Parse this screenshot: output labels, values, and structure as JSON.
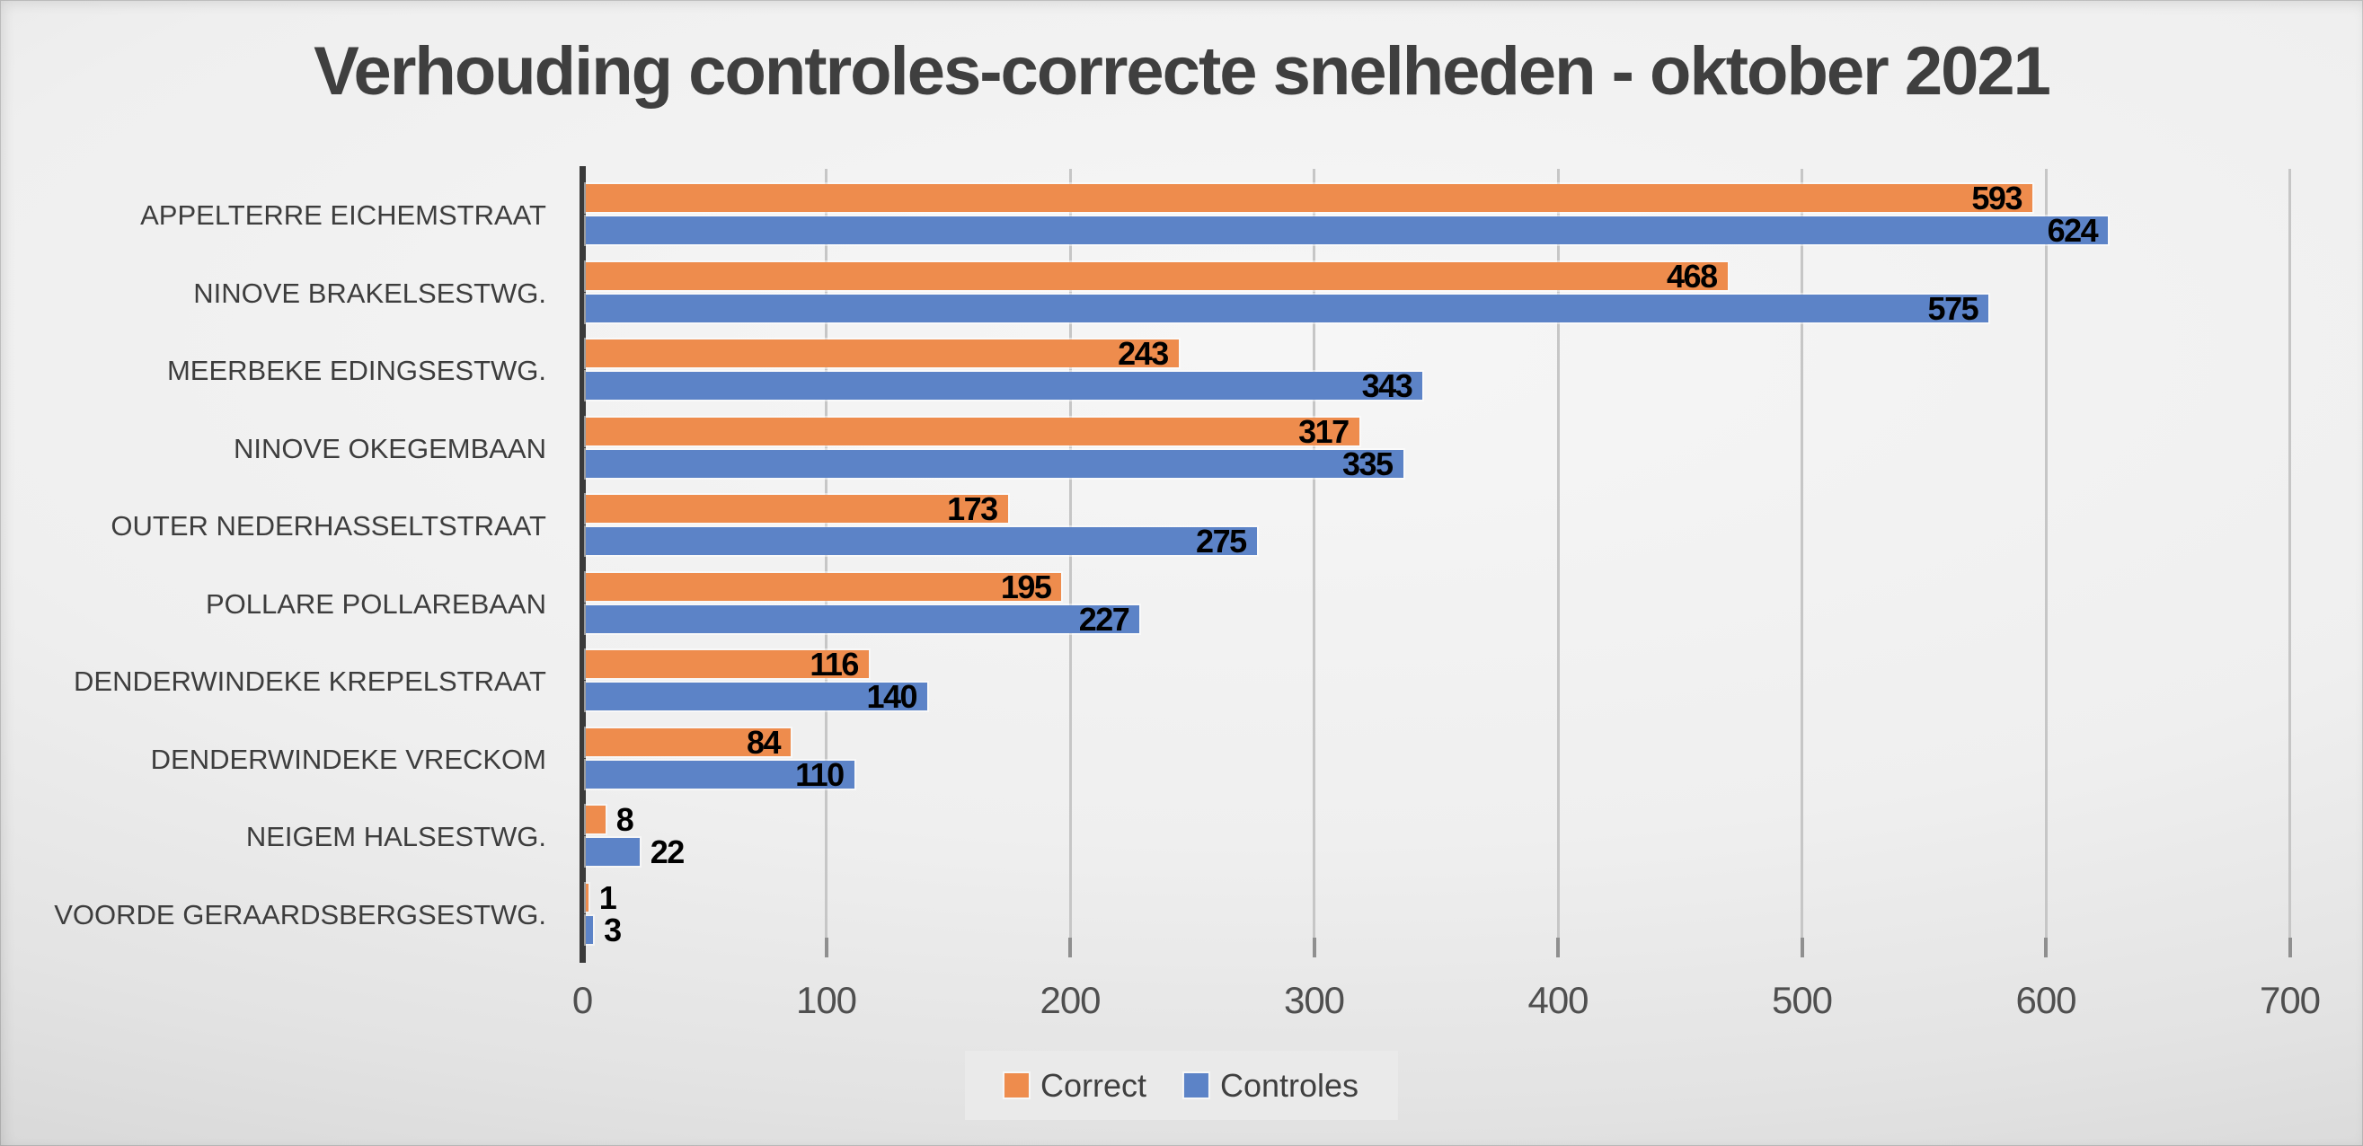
{
  "title": "Verhouding controles-correcte snelheden - oktober 2021",
  "chart_data": {
    "type": "bar",
    "orientation": "horizontal",
    "title": "Verhouding controles-correcte snelheden - oktober 2021",
    "categories": [
      "APPELTERRE EICHEMSTRAAT",
      "NINOVE BRAKELSESTWG.",
      "MEERBEKE EDINGSESTWG.",
      "NINOVE OKEGEMBAAN",
      "OUTER NEDERHASSELTSTRAAT",
      "POLLARE POLLAREBAAN",
      "DENDERWINDEKE KREPELSTRAAT",
      "DENDERWINDEKE VRECKOM",
      "NEIGEM HALSESTWG.",
      "VOORDE GERAARDSBERGSESTWG."
    ],
    "series": [
      {
        "name": "Correct",
        "color": "#EE8C4D",
        "values": [
          593,
          468,
          243,
          317,
          173,
          195,
          116,
          84,
          8,
          1
        ]
      },
      {
        "name": "Controles",
        "color": "#5C83C7",
        "values": [
          624,
          575,
          343,
          335,
          275,
          227,
          140,
          110,
          22,
          3
        ]
      }
    ],
    "xlim": [
      0,
      700
    ],
    "xticks": [
      0,
      100,
      200,
      300,
      400,
      500,
      600,
      700
    ],
    "grid": "vertical",
    "legend_position": "bottom",
    "value_labels": "end-of-bar"
  },
  "colors": {
    "title_text": "#3f3f3f",
    "category_label": "#3d3d3d",
    "tick_label": "#4f4f4f",
    "value_label": "#000000",
    "gridline": "#c6c6c6",
    "axis_line": "#3a3a3a",
    "legend_background": "#ebebeb",
    "background_light": "#f6f6f6",
    "background_dark": "#c2c2c2"
  }
}
